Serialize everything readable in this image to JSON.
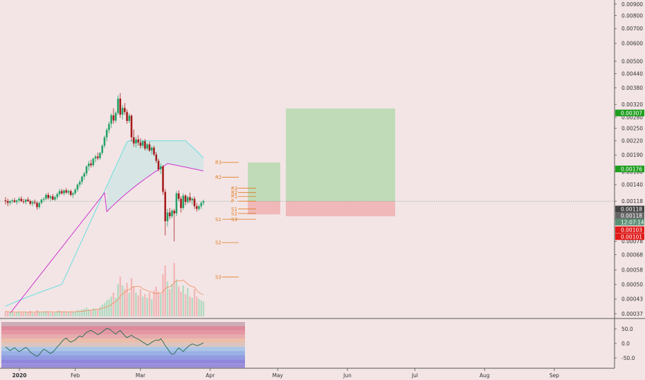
{
  "chart_data": {
    "type": "candlestick",
    "price_axis": {
      "scale": "log",
      "ticks": [
        "0.00900",
        "0.00800",
        "0.00700",
        "0.00600",
        "0.00500",
        "0.00440",
        "0.00380",
        "0.00320",
        "0.00280",
        "0.00250",
        "0.00220",
        "0.00190",
        "0.00160",
        "0.00140",
        "0.00118",
        "0.00098",
        "0.00078",
        "0.00068",
        "0.00058",
        "0.00050",
        "0.00043",
        "0.00037"
      ],
      "tick_values": [
        0.009,
        0.008,
        0.007,
        0.006,
        0.005,
        0.0044,
        0.0038,
        0.0032,
        0.0028,
        0.0025,
        0.0022,
        0.0019,
        0.0016,
        0.0014,
        0.00118,
        0.00098,
        0.00078,
        0.00068,
        0.00058,
        0.0005,
        0.00043,
        0.00037
      ]
    },
    "price_tags": [
      {
        "label": "0.00307",
        "value": 0.00307,
        "color": "#1e9e1e"
      },
      {
        "label": "0.00176",
        "value": 0.00176,
        "color": "#1e9e1e"
      },
      {
        "label": "0.00118",
        "value": 0.00118,
        "color": "#444444"
      },
      {
        "label": "0.00118",
        "value": 0.00118,
        "color": "#666666"
      },
      {
        "label": "12:07:14",
        "value": 0.00112,
        "color": "#5a8f74"
      },
      {
        "label": "0.00103",
        "value": 0.00103,
        "color": "#e01818"
      },
      {
        "label": "0.00101",
        "value": 0.00101,
        "color": "#e01818"
      }
    ],
    "time_axis": {
      "labels": [
        "2020",
        "Feb",
        "Mar",
        "Apr",
        "May",
        "Jun",
        "Jul",
        "Aug",
        "Sep"
      ],
      "day_index": [
        0,
        31,
        60,
        91,
        121,
        152,
        182,
        213,
        244
      ]
    },
    "candles": [
      {
        "o": 0.00119,
        "h": 0.00123,
        "l": 0.00114,
        "c": 0.00118
      },
      {
        "o": 0.00118,
        "h": 0.00121,
        "l": 0.00112,
        "c": 0.00116
      },
      {
        "o": 0.00116,
        "h": 0.00119,
        "l": 0.00113,
        "c": 0.00118
      },
      {
        "o": 0.00118,
        "h": 0.00121,
        "l": 0.00115,
        "c": 0.00119
      },
      {
        "o": 0.00119,
        "h": 0.00122,
        "l": 0.00116,
        "c": 0.00117
      },
      {
        "o": 0.00117,
        "h": 0.0012,
        "l": 0.00114,
        "c": 0.00119
      },
      {
        "o": 0.00119,
        "h": 0.00123,
        "l": 0.00116,
        "c": 0.00121
      },
      {
        "o": 0.00121,
        "h": 0.00124,
        "l": 0.00117,
        "c": 0.00118
      },
      {
        "o": 0.00118,
        "h": 0.00121,
        "l": 0.00115,
        "c": 0.00117
      },
      {
        "o": 0.00117,
        "h": 0.00121,
        "l": 0.00114,
        "c": 0.0012
      },
      {
        "o": 0.0012,
        "h": 0.00123,
        "l": 0.00117,
        "c": 0.00118
      },
      {
        "o": 0.00118,
        "h": 0.0012,
        "l": 0.00113,
        "c": 0.00115
      },
      {
        "o": 0.00115,
        "h": 0.00119,
        "l": 0.00112,
        "c": 0.00117
      },
      {
        "o": 0.00117,
        "h": 0.0012,
        "l": 0.00114,
        "c": 0.00116
      },
      {
        "o": 0.00116,
        "h": 0.00118,
        "l": 0.00108,
        "c": 0.00111
      },
      {
        "o": 0.00111,
        "h": 0.00117,
        "l": 0.00109,
        "c": 0.00116
      },
      {
        "o": 0.00116,
        "h": 0.00121,
        "l": 0.00114,
        "c": 0.0012
      },
      {
        "o": 0.0012,
        "h": 0.00123,
        "l": 0.00117,
        "c": 0.00121
      },
      {
        "o": 0.00121,
        "h": 0.00128,
        "l": 0.00119,
        "c": 0.00126
      },
      {
        "o": 0.00126,
        "h": 0.00129,
        "l": 0.0012,
        "c": 0.00122
      },
      {
        "o": 0.00122,
        "h": 0.00126,
        "l": 0.00118,
        "c": 0.00124
      },
      {
        "o": 0.00124,
        "h": 0.00127,
        "l": 0.00119,
        "c": 0.0012
      },
      {
        "o": 0.0012,
        "h": 0.00125,
        "l": 0.00118,
        "c": 0.00123
      },
      {
        "o": 0.00123,
        "h": 0.00129,
        "l": 0.0012,
        "c": 0.00127
      },
      {
        "o": 0.00127,
        "h": 0.00134,
        "l": 0.00124,
        "c": 0.00131
      },
      {
        "o": 0.00131,
        "h": 0.00134,
        "l": 0.00126,
        "c": 0.00128
      },
      {
        "o": 0.00128,
        "h": 0.00133,
        "l": 0.00125,
        "c": 0.00132
      },
      {
        "o": 0.00132,
        "h": 0.00135,
        "l": 0.00127,
        "c": 0.00129
      },
      {
        "o": 0.00129,
        "h": 0.00133,
        "l": 0.00126,
        "c": 0.00131
      },
      {
        "o": 0.00131,
        "h": 0.00133,
        "l": 0.00124,
        "c": 0.00126
      },
      {
        "o": 0.00126,
        "h": 0.0013,
        "l": 0.00122,
        "c": 0.00128
      },
      {
        "o": 0.00128,
        "h": 0.00135,
        "l": 0.00126,
        "c": 0.00133
      },
      {
        "o": 0.00133,
        "h": 0.00142,
        "l": 0.0013,
        "c": 0.0014
      },
      {
        "o": 0.0014,
        "h": 0.00147,
        "l": 0.00136,
        "c": 0.00144
      },
      {
        "o": 0.00144,
        "h": 0.00154,
        "l": 0.0014,
        "c": 0.00152
      },
      {
        "o": 0.00152,
        "h": 0.0016,
        "l": 0.00147,
        "c": 0.00157
      },
      {
        "o": 0.00157,
        "h": 0.00171,
        "l": 0.00153,
        "c": 0.00169
      },
      {
        "o": 0.00169,
        "h": 0.00179,
        "l": 0.00162,
        "c": 0.00174
      },
      {
        "o": 0.00174,
        "h": 0.00181,
        "l": 0.00167,
        "c": 0.00171
      },
      {
        "o": 0.00171,
        "h": 0.00185,
        "l": 0.00168,
        "c": 0.00183
      },
      {
        "o": 0.00183,
        "h": 0.00191,
        "l": 0.00176,
        "c": 0.00187
      },
      {
        "o": 0.00187,
        "h": 0.00195,
        "l": 0.0018,
        "c": 0.00184
      },
      {
        "o": 0.00184,
        "h": 0.00196,
        "l": 0.00181,
        "c": 0.00194
      },
      {
        "o": 0.00194,
        "h": 0.00212,
        "l": 0.0019,
        "c": 0.00209
      },
      {
        "o": 0.00209,
        "h": 0.00232,
        "l": 0.00204,
        "c": 0.00228
      },
      {
        "o": 0.00228,
        "h": 0.00251,
        "l": 0.00219,
        "c": 0.00246
      },
      {
        "o": 0.00246,
        "h": 0.00268,
        "l": 0.00238,
        "c": 0.00262
      },
      {
        "o": 0.00262,
        "h": 0.00292,
        "l": 0.00251,
        "c": 0.00286
      },
      {
        "o": 0.00286,
        "h": 0.00308,
        "l": 0.00262,
        "c": 0.00271
      },
      {
        "o": 0.00271,
        "h": 0.00298,
        "l": 0.00265,
        "c": 0.00293
      },
      {
        "o": 0.00293,
        "h": 0.00352,
        "l": 0.00287,
        "c": 0.0034
      },
      {
        "o": 0.0034,
        "h": 0.0036,
        "l": 0.00279,
        "c": 0.00288
      },
      {
        "o": 0.00288,
        "h": 0.00318,
        "l": 0.00274,
        "c": 0.00309
      },
      {
        "o": 0.00309,
        "h": 0.00325,
        "l": 0.00287,
        "c": 0.00296
      },
      {
        "o": 0.00296,
        "h": 0.00304,
        "l": 0.00262,
        "c": 0.0027
      },
      {
        "o": 0.0027,
        "h": 0.00292,
        "l": 0.00264,
        "c": 0.00285
      },
      {
        "o": 0.00285,
        "h": 0.00289,
        "l": 0.00218,
        "c": 0.00228
      },
      {
        "o": 0.00228,
        "h": 0.00247,
        "l": 0.00207,
        "c": 0.00214
      },
      {
        "o": 0.00214,
        "h": 0.00229,
        "l": 0.00205,
        "c": 0.00223
      },
      {
        "o": 0.00223,
        "h": 0.00233,
        "l": 0.00209,
        "c": 0.00216
      },
      {
        "o": 0.00216,
        "h": 0.00226,
        "l": 0.00203,
        "c": 0.00209
      },
      {
        "o": 0.00209,
        "h": 0.00222,
        "l": 0.00204,
        "c": 0.00219
      },
      {
        "o": 0.00219,
        "h": 0.00224,
        "l": 0.00199,
        "c": 0.00203
      },
      {
        "o": 0.00203,
        "h": 0.00215,
        "l": 0.00199,
        "c": 0.00212
      },
      {
        "o": 0.00212,
        "h": 0.00218,
        "l": 0.00196,
        "c": 0.00199
      },
      {
        "o": 0.00199,
        "h": 0.00208,
        "l": 0.00191,
        "c": 0.00205
      },
      {
        "o": 0.00205,
        "h": 0.00209,
        "l": 0.00188,
        "c": 0.00191
      },
      {
        "o": 0.00191,
        "h": 0.00196,
        "l": 0.00175,
        "c": 0.00179
      },
      {
        "o": 0.00179,
        "h": 0.00183,
        "l": 0.0016,
        "c": 0.00164
      },
      {
        "o": 0.00164,
        "h": 0.00174,
        "l": 0.00156,
        "c": 0.00169
      },
      {
        "o": 0.00169,
        "h": 0.00171,
        "l": 0.00126,
        "c": 0.0013
      },
      {
        "o": 0.0013,
        "h": 0.00134,
        "l": 0.00083,
        "c": 0.00096
      },
      {
        "o": 0.00096,
        "h": 0.00109,
        "l": 0.00091,
        "c": 0.00105
      },
      {
        "o": 0.00105,
        "h": 0.0011,
        "l": 0.00098,
        "c": 0.00101
      },
      {
        "o": 0.00101,
        "h": 0.00109,
        "l": 0.00099,
        "c": 0.00107
      },
      {
        "o": 0.00107,
        "h": 0.00109,
        "l": 0.00078,
        "c": 0.00104
      },
      {
        "o": 0.00104,
        "h": 0.00131,
        "l": 0.00101,
        "c": 0.00128
      },
      {
        "o": 0.00128,
        "h": 0.00132,
        "l": 0.00118,
        "c": 0.00121
      },
      {
        "o": 0.00121,
        "h": 0.00124,
        "l": 0.00105,
        "c": 0.0011
      },
      {
        "o": 0.0011,
        "h": 0.00128,
        "l": 0.00108,
        "c": 0.00125
      },
      {
        "o": 0.00125,
        "h": 0.00127,
        "l": 0.00113,
        "c": 0.00117
      },
      {
        "o": 0.00117,
        "h": 0.00125,
        "l": 0.00115,
        "c": 0.00123
      },
      {
        "o": 0.00123,
        "h": 0.00129,
        "l": 0.00116,
        "c": 0.00119
      },
      {
        "o": 0.00119,
        "h": 0.00123,
        "l": 0.00114,
        "c": 0.00121
      },
      {
        "o": 0.00121,
        "h": 0.00124,
        "l": 0.00109,
        "c": 0.00112
      },
      {
        "o": 0.00112,
        "h": 0.00116,
        "l": 0.00106,
        "c": 0.00109
      },
      {
        "o": 0.00109,
        "h": 0.00114,
        "l": 0.00107,
        "c": 0.00112
      },
      {
        "o": 0.00112,
        "h": 0.00118,
        "l": 0.00109,
        "c": 0.00116
      },
      {
        "o": 0.00116,
        "h": 0.0012,
        "l": 0.00113,
        "c": 0.00118
      }
    ],
    "volume": [
      0.42,
      0.35,
      0.31,
      0.38,
      0.29,
      0.33,
      0.4,
      0.36,
      0.3,
      0.34,
      0.32,
      0.45,
      0.28,
      0.31,
      0.5,
      0.37,
      0.33,
      0.35,
      0.44,
      0.39,
      0.3,
      0.36,
      0.32,
      0.41,
      0.47,
      0.38,
      0.35,
      0.33,
      0.37,
      0.4,
      0.34,
      0.38,
      0.52,
      0.46,
      0.55,
      0.6,
      0.7,
      0.58,
      0.5,
      0.66,
      0.62,
      0.57,
      0.75,
      0.95,
      1.1,
      1.3,
      1.4,
      1.6,
      1.9,
      1.5,
      2.6,
      3.2,
      2.5,
      2.2,
      2.7,
      1.9,
      3.1,
      2.4,
      1.9,
      1.7,
      2.2,
      1.6,
      1.8,
      1.5,
      1.9,
      1.4,
      2.1,
      2.4,
      2.0,
      1.8,
      3.4,
      4.1,
      2.8,
      2.2,
      2.6,
      4.3,
      3.0,
      2.4,
      2.0,
      2.5,
      1.8,
      2.3,
      1.6,
      1.5,
      2.2,
      1.6,
      1.4,
      1.3,
      1.2
    ],
    "indicator_lines": {
      "upper_band_color": "#66dede",
      "ma_color": "#cc33cc",
      "volume_ma_color": "#f28c5a",
      "oscillator_color": "#2f6f5c"
    },
    "pivot_levels": {
      "set1": [
        {
          "label": "R3",
          "value": 0.00176
        },
        {
          "label": "R2",
          "value": 0.00151
        },
        {
          "label": "S1",
          "value": 0.00098
        },
        {
          "label": "S2",
          "value": 0.00077
        },
        {
          "label": "S3",
          "value": 0.00054
        }
      ],
      "set2": [
        {
          "label": "R3",
          "value": 0.00135
        },
        {
          "label": "R2",
          "value": 0.00129
        },
        {
          "label": "R1",
          "value": 0.00124
        },
        {
          "label": "P",
          "value": 0.00118
        },
        {
          "label": "S1",
          "value": 0.00109
        },
        {
          "label": "S2",
          "value": 0.00104
        },
        {
          "label": "S3",
          "value": 0.00098
        }
      ]
    },
    "positions": [
      {
        "entry": 0.00118,
        "target": 0.00176,
        "stop": 0.00103
      },
      {
        "entry": 0.00118,
        "target": 0.00307,
        "stop": 0.00101
      }
    ],
    "oscillator": {
      "ticks": [
        "50.0",
        "0.0",
        "-50.0"
      ],
      "tick_values": [
        50,
        0,
        -50
      ],
      "values": [
        -12,
        -18,
        -25,
        -20,
        -15,
        -22,
        -28,
        -24,
        -18,
        -14,
        -20,
        -30,
        -36,
        -40,
        -45,
        -38,
        -28,
        -20,
        -24,
        -30,
        -35,
        -30,
        -22,
        -12,
        -4,
        6,
        14,
        18,
        10,
        4,
        8,
        12,
        20,
        26,
        22,
        30,
        38,
        42,
        45,
        40,
        36,
        30,
        34,
        40,
        46,
        52,
        50,
        44,
        38,
        32,
        40,
        44,
        36,
        26,
        20,
        24,
        28,
        22,
        18,
        14,
        10,
        4,
        0,
        -6,
        -2,
        4,
        8,
        12,
        10,
        16,
        6,
        -8,
        -18,
        -30,
        -38,
        -36,
        -24,
        -16,
        -22,
        -28,
        -20,
        -12,
        -6,
        -2,
        -4,
        -8,
        -6,
        -2,
        2
      ]
    }
  }
}
